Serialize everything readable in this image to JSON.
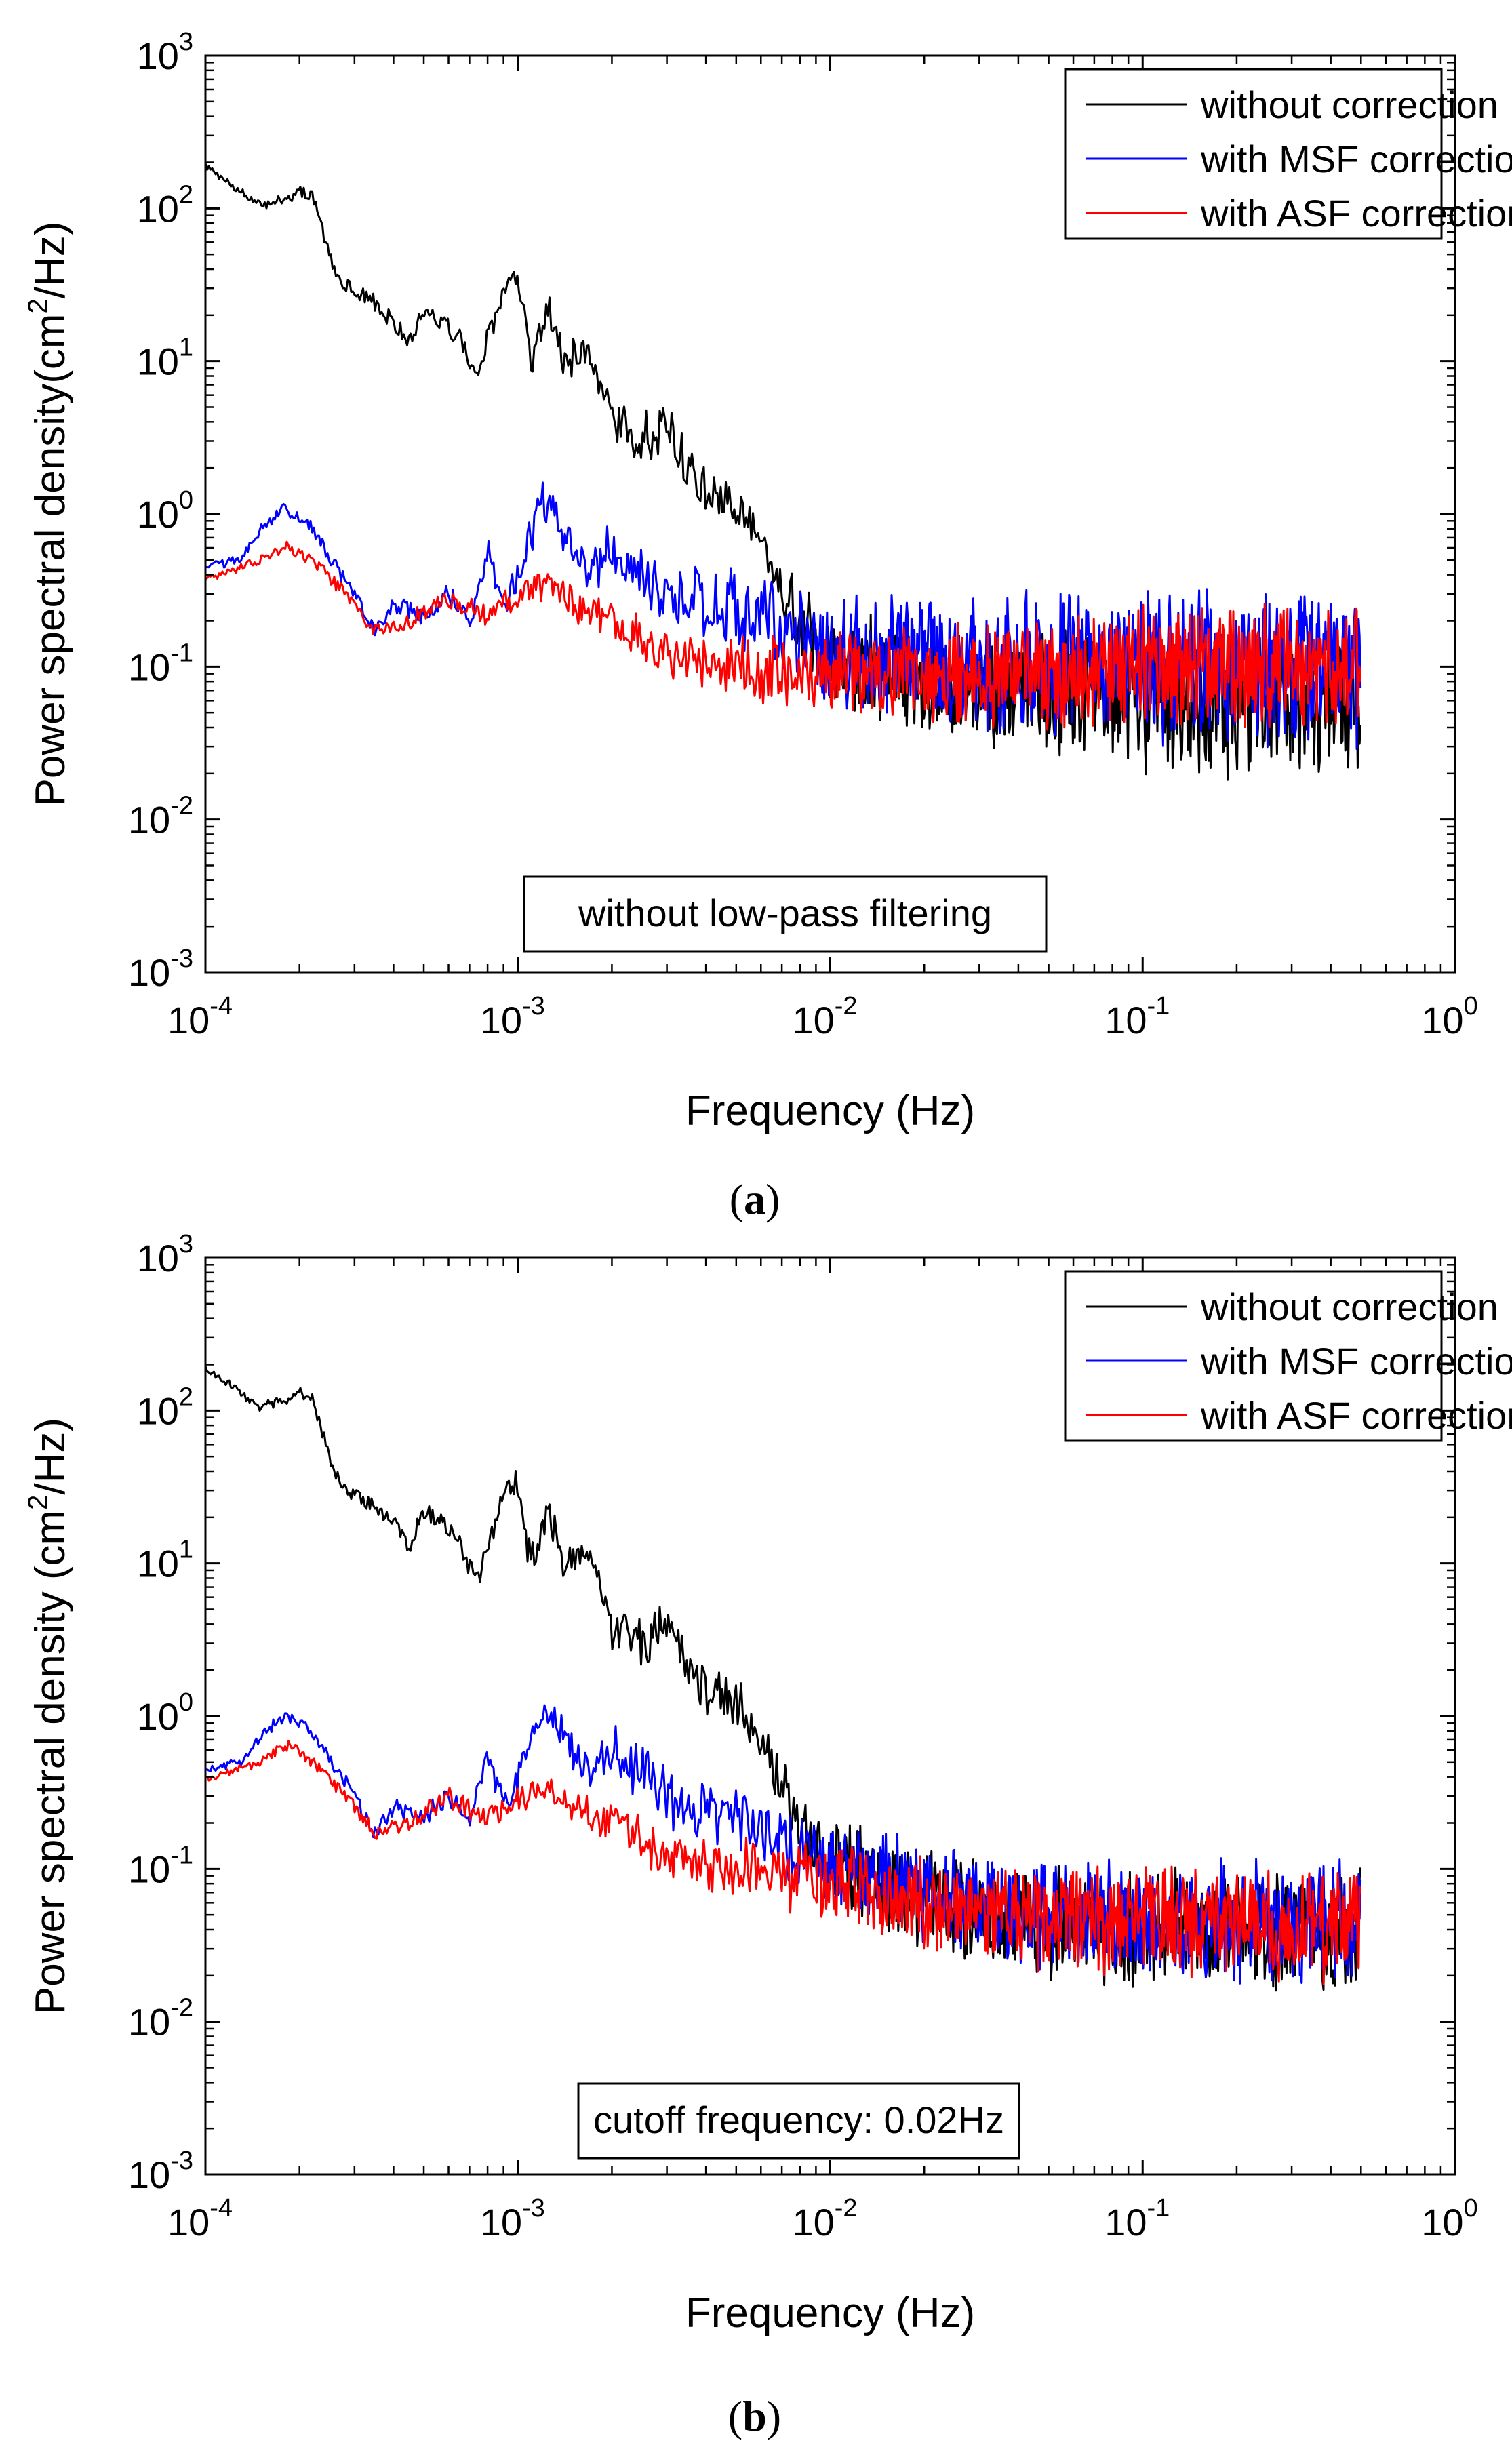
{
  "colors": {
    "without": "#000000",
    "msf": "#0000ff",
    "asf": "#ff0000"
  },
  "chart_data": [
    {
      "id": "a",
      "type": "line",
      "subtitle": "(a)",
      "subtitle_letter": "a",
      "xlabel": "Frequency (Hz)",
      "ylabel_prefix": "Power spectral density(cm",
      "ylabel_sup": "2",
      "ylabel_suffix": "/Hz)",
      "xscale": "log",
      "yscale": "log",
      "xlim": [
        0.0001,
        1
      ],
      "ylim": [
        0.001,
        1000
      ],
      "x_ticks": [
        {
          "base": "10",
          "exp": "-4"
        },
        {
          "base": "10",
          "exp": "-3"
        },
        {
          "base": "10",
          "exp": "-2"
        },
        {
          "base": "10",
          "exp": "-1"
        },
        {
          "base": "10",
          "exp": "0"
        }
      ],
      "y_ticks": [
        {
          "base": "10",
          "exp": "-3"
        },
        {
          "base": "10",
          "exp": "-2"
        },
        {
          "base": "10",
          "exp": "-1"
        },
        {
          "base": "10",
          "exp": "0"
        },
        {
          "base": "10",
          "exp": "1"
        },
        {
          "base": "10",
          "exp": "2"
        },
        {
          "base": "10",
          "exp": "3"
        }
      ],
      "legend_position": "top-right",
      "annotation": "without low-pass filtering",
      "series": [
        {
          "name": "without correction",
          "color_key": "without",
          "anchors": [
            [
              0.0001,
              190
            ],
            [
              0.00015,
              105
            ],
            [
              0.0002,
              128
            ],
            [
              0.00022,
              120
            ],
            [
              0.00026,
              38
            ],
            [
              0.0003,
              28
            ],
            [
              0.00035,
              24
            ],
            [
              0.0004,
              18
            ],
            [
              0.00045,
              13
            ],
            [
              0.0005,
              22
            ],
            [
              0.0006,
              17
            ],
            [
              0.00065,
              14
            ],
            [
              0.0007,
              10
            ],
            [
              0.00075,
              8
            ],
            [
              0.0008,
              14
            ],
            [
              0.0009,
              28
            ],
            [
              0.00095,
              36
            ],
            [
              0.001,
              30
            ],
            [
              0.0011,
              10
            ],
            [
              0.00125,
              24
            ],
            [
              0.0014,
              10
            ],
            [
              0.0017,
              13
            ],
            [
              0.002,
              4
            ],
            [
              0.0025,
              3
            ],
            [
              0.003,
              4
            ],
            [
              0.0035,
              2
            ],
            [
              0.004,
              1.5
            ],
            [
              0.005,
              1.2
            ],
            [
              0.006,
              0.6
            ],
            [
              0.007,
              0.35
            ],
            [
              0.008,
              0.2
            ],
            [
              0.009,
              0.14
            ],
            [
              0.01,
              0.12
            ],
            [
              0.02,
              0.08
            ],
            [
              0.05,
              0.065
            ],
            [
              0.1,
              0.06
            ],
            [
              0.2,
              0.055
            ],
            [
              0.5,
              0.055
            ]
          ],
          "spread": [
            [
              0.0001,
              0.02
            ],
            [
              0.0006,
              0.06
            ],
            [
              0.0015,
              0.12
            ],
            [
              0.003,
              0.15
            ],
            [
              0.006,
              0.17
            ],
            [
              0.01,
              0.25
            ],
            [
              0.03,
              0.32
            ],
            [
              0.1,
              0.38
            ],
            [
              0.5,
              0.4
            ]
          ]
        },
        {
          "name": "with MSF correction",
          "color_key": "msf",
          "anchors": [
            [
              0.0001,
              0.45
            ],
            [
              0.00013,
              0.5
            ],
            [
              0.00015,
              0.8
            ],
            [
              0.00018,
              1.1
            ],
            [
              0.00022,
              0.8
            ],
            [
              0.00026,
              0.45
            ],
            [
              0.0003,
              0.3
            ],
            [
              0.00035,
              0.17
            ],
            [
              0.0004,
              0.25
            ],
            [
              0.0005,
              0.22
            ],
            [
              0.0006,
              0.3
            ],
            [
              0.0007,
              0.2
            ],
            [
              0.0008,
              0.6
            ],
            [
              0.0009,
              0.25
            ],
            [
              0.001,
              0.4
            ],
            [
              0.0012,
              1.2
            ],
            [
              0.0014,
              0.8
            ],
            [
              0.0017,
              0.4
            ],
            [
              0.002,
              0.6
            ],
            [
              0.003,
              0.3
            ],
            [
              0.005,
              0.25
            ],
            [
              0.01,
              0.12
            ],
            [
              0.02,
              0.12
            ],
            [
              0.05,
              0.1
            ],
            [
              0.1,
              0.1
            ],
            [
              0.5,
              0.1
            ]
          ],
          "spread": [
            [
              0.0001,
              0.02
            ],
            [
              0.0006,
              0.06
            ],
            [
              0.0015,
              0.12
            ],
            [
              0.003,
              0.18
            ],
            [
              0.01,
              0.3
            ],
            [
              0.03,
              0.38
            ],
            [
              0.1,
              0.42
            ],
            [
              0.5,
              0.45
            ]
          ]
        },
        {
          "name": "with ASF correction",
          "color_key": "asf",
          "anchors": [
            [
              0.0001,
              0.37
            ],
            [
              0.00015,
              0.5
            ],
            [
              0.00018,
              0.62
            ],
            [
              0.00022,
              0.5
            ],
            [
              0.00028,
              0.3
            ],
            [
              0.00035,
              0.17
            ],
            [
              0.00045,
              0.2
            ],
            [
              0.0006,
              0.28
            ],
            [
              0.0008,
              0.22
            ],
            [
              0.001,
              0.28
            ],
            [
              0.0012,
              0.35
            ],
            [
              0.0015,
              0.25
            ],
            [
              0.002,
              0.2
            ],
            [
              0.003,
              0.12
            ],
            [
              0.005,
              0.1
            ],
            [
              0.01,
              0.09
            ],
            [
              0.02,
              0.09
            ],
            [
              0.05,
              0.09
            ],
            [
              0.1,
              0.1
            ],
            [
              0.5,
              0.1
            ]
          ],
          "spread": [
            [
              0.0001,
              0.02
            ],
            [
              0.0006,
              0.06
            ],
            [
              0.0015,
              0.1
            ],
            [
              0.003,
              0.15
            ],
            [
              0.01,
              0.22
            ],
            [
              0.03,
              0.3
            ],
            [
              0.1,
              0.33
            ],
            [
              0.5,
              0.35
            ]
          ]
        }
      ]
    },
    {
      "id": "b",
      "type": "line",
      "subtitle": "(b)",
      "subtitle_letter": "b",
      "xlabel": "Frequency (Hz)",
      "ylabel_prefix": "Power spectral density (cm",
      "ylabel_sup": "2",
      "ylabel_suffix": "/Hz)",
      "xscale": "log",
      "yscale": "log",
      "xlim": [
        0.0001,
        1
      ],
      "ylim": [
        0.001,
        1000
      ],
      "x_ticks": [
        {
          "base": "10",
          "exp": "-4"
        },
        {
          "base": "10",
          "exp": "-3"
        },
        {
          "base": "10",
          "exp": "-2"
        },
        {
          "base": "10",
          "exp": "-1"
        },
        {
          "base": "10",
          "exp": "0"
        }
      ],
      "y_ticks": [
        {
          "base": "10",
          "exp": "-3"
        },
        {
          "base": "10",
          "exp": "-2"
        },
        {
          "base": "10",
          "exp": "-1"
        },
        {
          "base": "10",
          "exp": "0"
        },
        {
          "base": "10",
          "exp": "1"
        },
        {
          "base": "10",
          "exp": "2"
        },
        {
          "base": "10",
          "exp": "3"
        }
      ],
      "legend_position": "top-right",
      "annotation": "cutoff frequency: 0.02Hz",
      "series": [
        {
          "name": "without correction",
          "color_key": "without",
          "anchors": [
            [
              0.0001,
              190
            ],
            [
              0.00015,
              105
            ],
            [
              0.0002,
              128
            ],
            [
              0.00022,
              120
            ],
            [
              0.00026,
              38
            ],
            [
              0.0003,
              28
            ],
            [
              0.00035,
              24
            ],
            [
              0.0004,
              18
            ],
            [
              0.00045,
              13
            ],
            [
              0.0005,
              22
            ],
            [
              0.0006,
              17
            ],
            [
              0.00065,
              14
            ],
            [
              0.0007,
              10
            ],
            [
              0.00075,
              8
            ],
            [
              0.0008,
              14
            ],
            [
              0.0009,
              28
            ],
            [
              0.00095,
              36
            ],
            [
              0.001,
              30
            ],
            [
              0.0011,
              10
            ],
            [
              0.00125,
              24
            ],
            [
              0.0014,
              10
            ],
            [
              0.0017,
              13
            ],
            [
              0.002,
              4
            ],
            [
              0.0025,
              3
            ],
            [
              0.003,
              4
            ],
            [
              0.0035,
              2
            ],
            [
              0.004,
              1.5
            ],
            [
              0.005,
              1.2
            ],
            [
              0.006,
              0.6
            ],
            [
              0.007,
              0.35
            ],
            [
              0.008,
              0.2
            ],
            [
              0.009,
              0.14
            ],
            [
              0.01,
              0.12
            ],
            [
              0.02,
              0.06
            ],
            [
              0.05,
              0.045
            ],
            [
              0.1,
              0.04
            ],
            [
              0.2,
              0.04
            ],
            [
              0.5,
              0.04
            ]
          ],
          "spread": [
            [
              0.0001,
              0.02
            ],
            [
              0.0006,
              0.06
            ],
            [
              0.0015,
              0.12
            ],
            [
              0.003,
              0.15
            ],
            [
              0.006,
              0.17
            ],
            [
              0.01,
              0.22
            ],
            [
              0.03,
              0.3
            ],
            [
              0.1,
              0.33
            ],
            [
              0.5,
              0.35
            ]
          ]
        },
        {
          "name": "with MSF correction",
          "color_key": "msf",
          "anchors": [
            [
              0.0001,
              0.45
            ],
            [
              0.00013,
              0.5
            ],
            [
              0.00015,
              0.75
            ],
            [
              0.00018,
              1.0
            ],
            [
              0.00022,
              0.8
            ],
            [
              0.00026,
              0.45
            ],
            [
              0.0003,
              0.3
            ],
            [
              0.00035,
              0.17
            ],
            [
              0.0004,
              0.25
            ],
            [
              0.0005,
              0.22
            ],
            [
              0.0006,
              0.3
            ],
            [
              0.0007,
              0.2
            ],
            [
              0.0008,
              0.6
            ],
            [
              0.0009,
              0.25
            ],
            [
              0.001,
              0.4
            ],
            [
              0.0012,
              1.1
            ],
            [
              0.0014,
              0.8
            ],
            [
              0.0017,
              0.4
            ],
            [
              0.002,
              0.6
            ],
            [
              0.003,
              0.3
            ],
            [
              0.005,
              0.22
            ],
            [
              0.01,
              0.11
            ],
            [
              0.02,
              0.07
            ],
            [
              0.05,
              0.05
            ],
            [
              0.1,
              0.045
            ],
            [
              0.5,
              0.045
            ]
          ],
          "spread": [
            [
              0.0001,
              0.02
            ],
            [
              0.0006,
              0.06
            ],
            [
              0.0015,
              0.12
            ],
            [
              0.003,
              0.18
            ],
            [
              0.01,
              0.22
            ],
            [
              0.03,
              0.3
            ],
            [
              0.1,
              0.32
            ],
            [
              0.5,
              0.34
            ]
          ]
        },
        {
          "name": "with ASF correction",
          "color_key": "asf",
          "anchors": [
            [
              0.0001,
              0.38
            ],
            [
              0.00015,
              0.5
            ],
            [
              0.00018,
              0.65
            ],
            [
              0.00022,
              0.5
            ],
            [
              0.00028,
              0.3
            ],
            [
              0.00035,
              0.17
            ],
            [
              0.00045,
              0.2
            ],
            [
              0.0006,
              0.3
            ],
            [
              0.0008,
              0.22
            ],
            [
              0.001,
              0.28
            ],
            [
              0.0012,
              0.35
            ],
            [
              0.0015,
              0.25
            ],
            [
              0.002,
              0.2
            ],
            [
              0.003,
              0.12
            ],
            [
              0.005,
              0.1
            ],
            [
              0.01,
              0.08
            ],
            [
              0.02,
              0.06
            ],
            [
              0.05,
              0.045
            ],
            [
              0.1,
              0.045
            ],
            [
              0.5,
              0.045
            ]
          ],
          "spread": [
            [
              0.0001,
              0.02
            ],
            [
              0.0006,
              0.06
            ],
            [
              0.0015,
              0.1
            ],
            [
              0.003,
              0.15
            ],
            [
              0.01,
              0.2
            ],
            [
              0.03,
              0.28
            ],
            [
              0.1,
              0.3
            ],
            [
              0.5,
              0.32
            ]
          ]
        }
      ]
    }
  ]
}
